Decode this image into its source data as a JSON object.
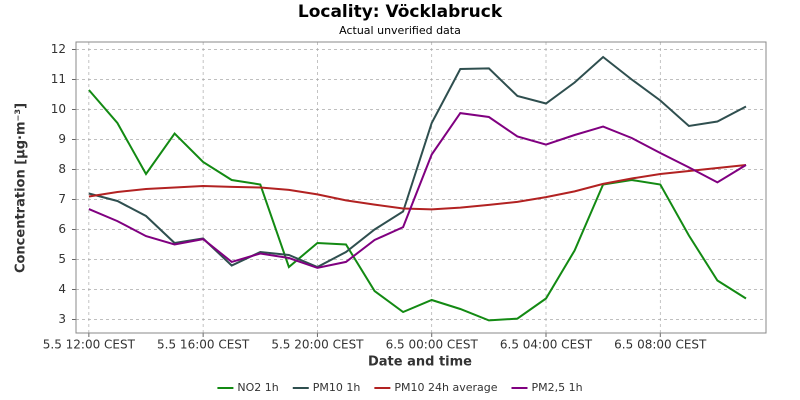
{
  "chart_data": {
    "type": "line",
    "title": "Locality: Vöcklabruck",
    "subtitle": "Actual unverified data",
    "x_label": "Date and time",
    "y_label": "Concentration [µg·m⁻³]",
    "categories": [
      "5.5 12:00 CEST",
      null,
      null,
      null,
      "5.5 16:00 CEST",
      null,
      null,
      null,
      "5.5 20:00 CEST",
      null,
      null,
      null,
      "6.5 00:00 CEST",
      null,
      null,
      null,
      "6.5 04:00 CEST",
      null,
      null,
      null,
      "6.5 08:00 CEST",
      null,
      null,
      null
    ],
    "ylim": [
      2.55,
      12.25
    ],
    "yticks": [
      3,
      4,
      5,
      6,
      7,
      8,
      9,
      10,
      11,
      12
    ],
    "grid": true,
    "legend": "bottom",
    "series": [
      {
        "name": "NO2 1h",
        "color": "#138a13",
        "values": [
          10.65,
          9.55,
          7.85,
          9.2,
          8.25,
          7.65,
          7.5,
          4.75,
          5.55,
          5.5,
          3.95,
          3.25,
          3.65,
          3.35,
          2.97,
          3.03,
          3.7,
          5.3,
          7.5,
          7.65,
          7.5,
          5.8,
          4.3,
          3.7
        ]
      },
      {
        "name": "PM10 1h",
        "color": "#2f4f4f",
        "values": [
          7.2,
          6.95,
          6.45,
          5.55,
          5.7,
          4.8,
          5.25,
          5.15,
          4.75,
          5.25,
          6.0,
          6.6,
          9.55,
          11.35,
          11.37,
          10.45,
          10.2,
          10.9,
          11.75,
          11.0,
          10.3,
          9.45,
          9.6,
          10.1
        ]
      },
      {
        "name": "PM10 24h average",
        "color": "#b22222",
        "values": [
          7.1,
          7.25,
          7.35,
          7.4,
          7.45,
          7.42,
          7.4,
          7.32,
          7.17,
          6.97,
          6.83,
          6.7,
          6.67,
          6.73,
          6.82,
          6.92,
          7.08,
          7.27,
          7.52,
          7.7,
          7.85,
          7.95,
          8.05,
          8.15
        ]
      },
      {
        "name": "PM2,5 1h",
        "color": "#800080",
        "values": [
          6.68,
          6.28,
          5.78,
          5.5,
          5.68,
          4.92,
          5.2,
          5.05,
          4.72,
          4.92,
          5.65,
          6.08,
          8.5,
          9.88,
          9.75,
          9.1,
          8.83,
          9.15,
          9.43,
          9.05,
          8.55,
          8.07,
          7.57,
          8.15
        ]
      }
    ]
  }
}
